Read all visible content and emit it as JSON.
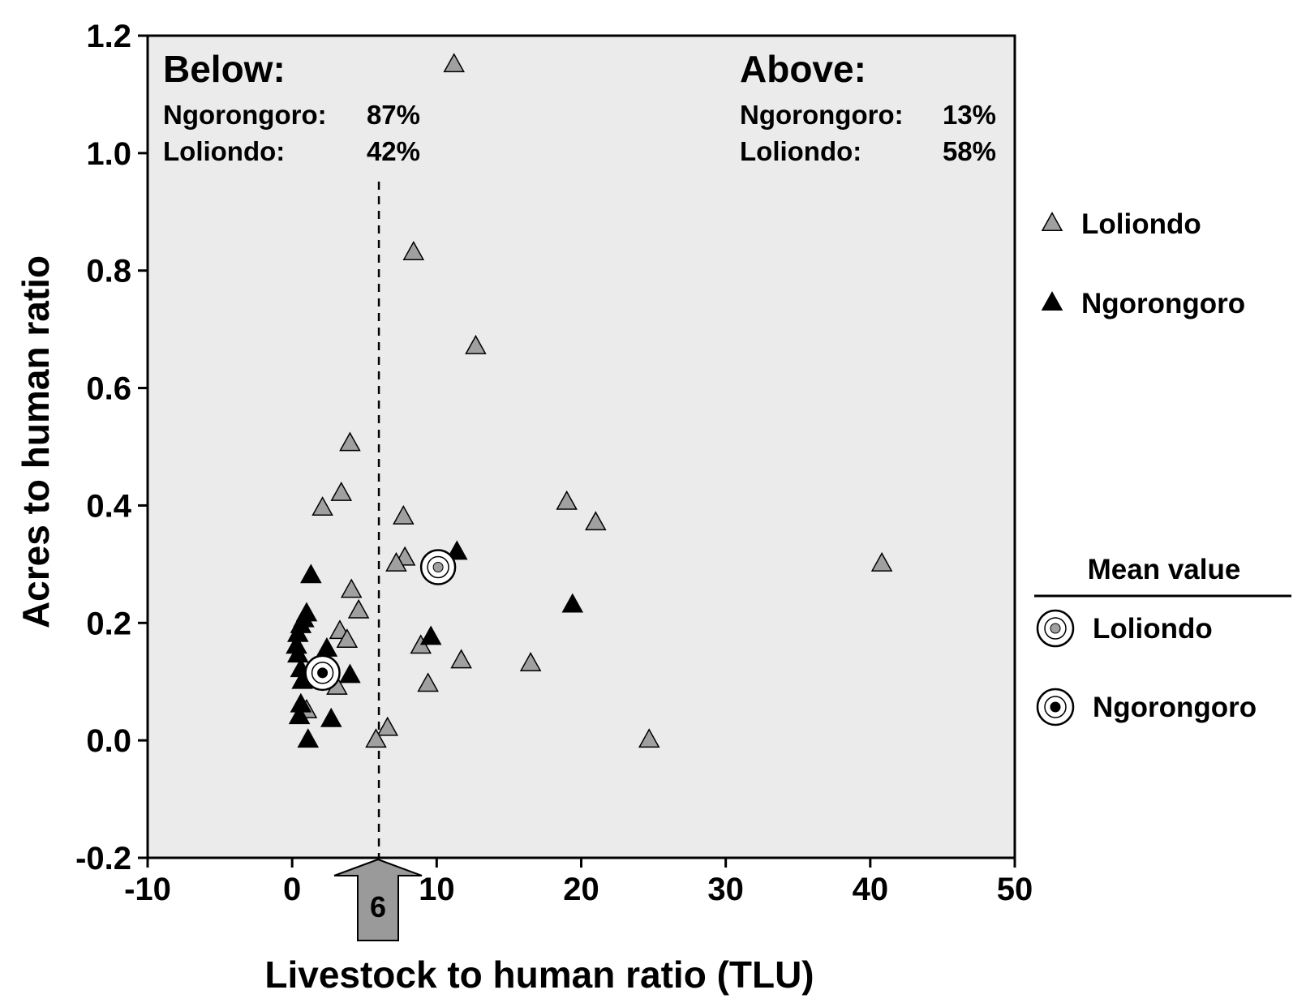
{
  "chart_data": {
    "type": "scatter",
    "title": "",
    "xlabel": "Livestock to human ratio  (TLU)",
    "ylabel": "Acres to human ratio",
    "xlim": [
      -10,
      50
    ],
    "ylim": [
      -0.2,
      1.2
    ],
    "x_ticks": [
      "-10",
      "0",
      "10",
      "20",
      "30",
      "40",
      "50"
    ],
    "y_ticks": [
      "-0.2",
      "0.0",
      "0.2",
      "0.4",
      "0.6",
      "0.8",
      "1.0",
      "1.2"
    ],
    "grid": false,
    "background": "#ebebeb",
    "threshold": {
      "x": 6,
      "label": "6",
      "style": "dashed"
    },
    "annotations": {
      "below": {
        "heading": "Below:",
        "rows": [
          {
            "name": "Ngorongoro:",
            "value": "87%"
          },
          {
            "name": "Loliondo:",
            "value": "42%"
          }
        ]
      },
      "above": {
        "heading": "Above:",
        "rows": [
          {
            "name": "Ngorongoro:",
            "value": "13%"
          },
          {
            "name": "Loliondo:",
            "value": "58%"
          }
        ]
      }
    },
    "series": [
      {
        "name": "Loliondo",
        "marker": "triangle",
        "color": "#a0a0a0",
        "points": [
          {
            "x": 11.2,
            "y": 1.15
          },
          {
            "x": 8.4,
            "y": 0.83
          },
          {
            "x": 12.7,
            "y": 0.67
          },
          {
            "x": 4.0,
            "y": 0.505
          },
          {
            "x": 3.4,
            "y": 0.42
          },
          {
            "x": 2.1,
            "y": 0.395
          },
          {
            "x": 7.7,
            "y": 0.38
          },
          {
            "x": 19.0,
            "y": 0.405
          },
          {
            "x": 21.0,
            "y": 0.37
          },
          {
            "x": 7.8,
            "y": 0.31
          },
          {
            "x": 7.2,
            "y": 0.3
          },
          {
            "x": 40.8,
            "y": 0.3
          },
          {
            "x": 4.1,
            "y": 0.255
          },
          {
            "x": 4.6,
            "y": 0.22
          },
          {
            "x": 3.3,
            "y": 0.185
          },
          {
            "x": 3.8,
            "y": 0.17
          },
          {
            "x": 8.9,
            "y": 0.16
          },
          {
            "x": 11.7,
            "y": 0.135
          },
          {
            "x": 16.5,
            "y": 0.13
          },
          {
            "x": 9.4,
            "y": 0.095
          },
          {
            "x": 3.1,
            "y": 0.09
          },
          {
            "x": 1.0,
            "y": 0.05
          },
          {
            "x": 6.6,
            "y": 0.02
          },
          {
            "x": 5.8,
            "y": 0.0
          },
          {
            "x": 24.7,
            "y": 0.0
          }
        ]
      },
      {
        "name": "Ngorongoro",
        "marker": "triangle",
        "color": "#000000",
        "points": [
          {
            "x": 11.4,
            "y": 0.32
          },
          {
            "x": 1.3,
            "y": 0.28
          },
          {
            "x": 19.4,
            "y": 0.23
          },
          {
            "x": 1.0,
            "y": 0.215
          },
          {
            "x": 0.8,
            "y": 0.205
          },
          {
            "x": 0.6,
            "y": 0.195
          },
          {
            "x": 0.4,
            "y": 0.18
          },
          {
            "x": 0.3,
            "y": 0.16
          },
          {
            "x": 9.6,
            "y": 0.175
          },
          {
            "x": 2.4,
            "y": 0.155
          },
          {
            "x": 0.4,
            "y": 0.145
          },
          {
            "x": 0.6,
            "y": 0.12
          },
          {
            "x": 4.0,
            "y": 0.11
          },
          {
            "x": 0.7,
            "y": 0.1
          },
          {
            "x": 0.6,
            "y": 0.06
          },
          {
            "x": 0.5,
            "y": 0.04
          },
          {
            "x": 2.7,
            "y": 0.035
          },
          {
            "x": 1.1,
            "y": 0.0
          }
        ]
      }
    ],
    "means": [
      {
        "name": "Loliondo",
        "x": 10.1,
        "y": 0.295,
        "dot_color": "#a0a0a0"
      },
      {
        "name": "Ngorongoro",
        "x": 2.1,
        "y": 0.115,
        "dot_color": "#000000"
      }
    ],
    "legend": {
      "position": "right",
      "series": [
        {
          "label": "Loliondo",
          "color": "#a0a0a0"
        },
        {
          "label": "Ngorongoro",
          "color": "#000000"
        }
      ],
      "mean_heading": "Mean value",
      "means": [
        {
          "label": "Loliondo",
          "dot_color": "#a0a0a0"
        },
        {
          "label": "Ngorongoro",
          "dot_color": "#000000"
        }
      ]
    }
  }
}
